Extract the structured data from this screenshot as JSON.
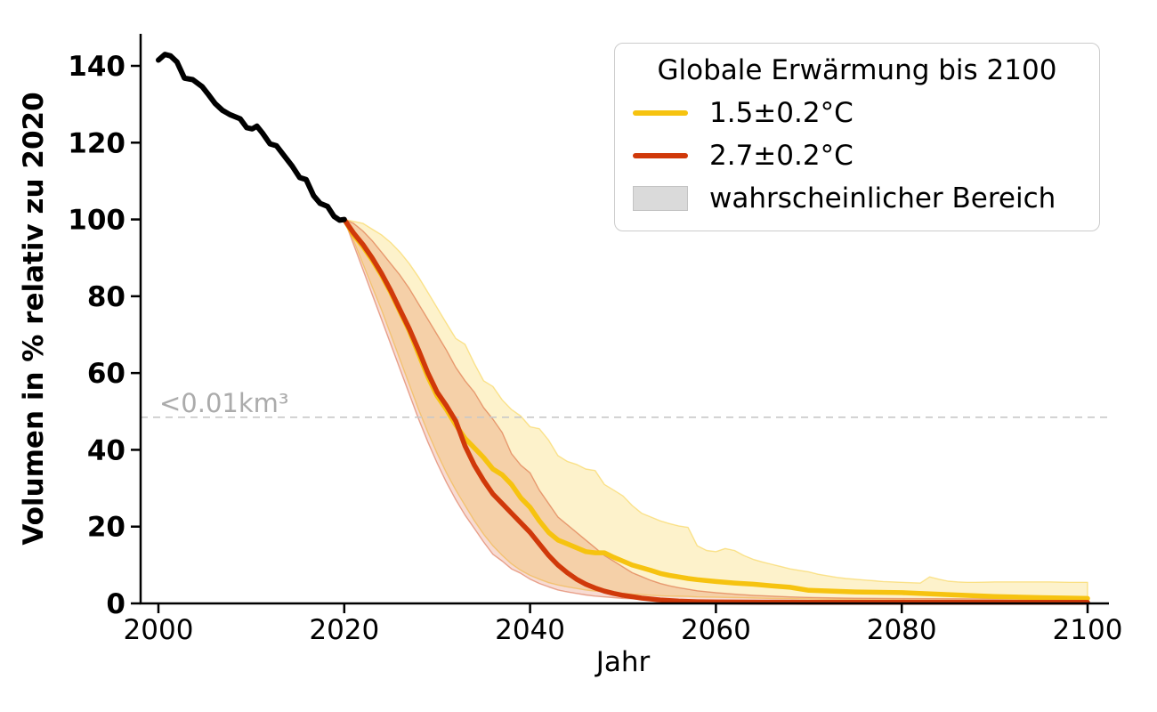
{
  "chart_data": {
    "type": "line",
    "xlabel": "Jahr",
    "ylabel": "Volumen in % relativ zu 2020",
    "xlim": [
      1998.1,
      2102.3
    ],
    "ylim": [
      0,
      148.3
    ],
    "x_ticks": [
      2000,
      2020,
      2040,
      2060,
      2080,
      2100
    ],
    "y_ticks": [
      0,
      20,
      40,
      60,
      80,
      100,
      120,
      140
    ],
    "grid": false,
    "threshold": {
      "label": "<0.01km³",
      "value": 48.5,
      "line_color": "#c8c8c8",
      "text_color": "#ababab"
    },
    "legend": {
      "title": "Globale Erwärmung bis 2100",
      "position": "upper right",
      "items": [
        {
          "label": "1.5±0.2°C",
          "type": "line",
          "color": "#f6c310"
        },
        {
          "label": "2.7±0.2°C",
          "type": "line",
          "color": "#d0390a"
        },
        {
          "label": "wahrscheinlicher Bereich",
          "type": "patch",
          "color": "#dadada"
        }
      ]
    },
    "series": [
      {
        "name": "historical",
        "color": "#000000",
        "width": 6,
        "points": [
          [
            2000,
            141.5
          ],
          [
            2000.7,
            143.0
          ],
          [
            2001.3,
            142.6
          ],
          [
            2002,
            141.0
          ],
          [
            2002.8,
            136.8
          ],
          [
            2003.7,
            136.4
          ],
          [
            2004.7,
            134.6
          ],
          [
            2005.3,
            132.8
          ],
          [
            2006.1,
            130.2
          ],
          [
            2006.9,
            128.4
          ],
          [
            2007.7,
            127.3
          ],
          [
            2008.8,
            126.2
          ],
          [
            2009.5,
            123.9
          ],
          [
            2010.1,
            123.6
          ],
          [
            2010.6,
            124.3
          ],
          [
            2011.2,
            122.5
          ],
          [
            2012,
            119.7
          ],
          [
            2012.7,
            119.2
          ],
          [
            2013.4,
            117.0
          ],
          [
            2014.4,
            113.9
          ],
          [
            2015.2,
            110.9
          ],
          [
            2015.9,
            110.4
          ],
          [
            2016.7,
            106.2
          ],
          [
            2017.4,
            104.2
          ],
          [
            2018.2,
            103.4
          ],
          [
            2018.9,
            100.8
          ],
          [
            2019.5,
            99.8
          ],
          [
            2020,
            100.0
          ]
        ]
      },
      {
        "name": "1.5±0.2°C",
        "color": "#f6c310",
        "width": 5.5,
        "points": [
          [
            2020,
            100
          ],
          [
            2021,
            96
          ],
          [
            2022,
            93
          ],
          [
            2023,
            89.5
          ],
          [
            2024,
            85.5
          ],
          [
            2025,
            81
          ],
          [
            2026,
            76
          ],
          [
            2027,
            71
          ],
          [
            2028,
            65
          ],
          [
            2029,
            59
          ],
          [
            2030,
            54
          ],
          [
            2031,
            50.5
          ],
          [
            2032,
            46.5
          ],
          [
            2033,
            43
          ],
          [
            2034,
            40.5
          ],
          [
            2035,
            38
          ],
          [
            2036,
            35
          ],
          [
            2037,
            33.5
          ],
          [
            2038,
            31
          ],
          [
            2039,
            27.5
          ],
          [
            2040,
            25
          ],
          [
            2041,
            21.5
          ],
          [
            2042,
            18.5
          ],
          [
            2043,
            16.5
          ],
          [
            2044,
            15.5
          ],
          [
            2045,
            14.5
          ],
          [
            2046,
            13.5
          ],
          [
            2047,
            13.2
          ],
          [
            2048,
            13.2
          ],
          [
            2049,
            12
          ],
          [
            2050,
            11
          ],
          [
            2051,
            10
          ],
          [
            2052,
            9.3
          ],
          [
            2053,
            8.6
          ],
          [
            2054,
            7.8
          ],
          [
            2055,
            7.3
          ],
          [
            2056,
            6.9
          ],
          [
            2057,
            6.5
          ],
          [
            2058,
            6.2
          ],
          [
            2060,
            5.7
          ],
          [
            2062,
            5.3
          ],
          [
            2064,
            5.0
          ],
          [
            2066,
            4.6
          ],
          [
            2068,
            4.2
          ],
          [
            2070,
            3.4
          ],
          [
            2075,
            3.0
          ],
          [
            2080,
            2.8
          ],
          [
            2085,
            2.3
          ],
          [
            2090,
            1.8
          ],
          [
            2095,
            1.5
          ],
          [
            2100,
            1.3
          ]
        ]
      },
      {
        "name": "2.7±0.2°C",
        "color": "#d0390a",
        "width": 5.5,
        "points": [
          [
            2020,
            100
          ],
          [
            2021,
            96.5
          ],
          [
            2022,
            93.5
          ],
          [
            2023,
            90
          ],
          [
            2024,
            86
          ],
          [
            2025,
            81.5
          ],
          [
            2026,
            76.5
          ],
          [
            2027,
            71.5
          ],
          [
            2028,
            66
          ],
          [
            2029,
            60
          ],
          [
            2030,
            55
          ],
          [
            2031,
            51.5
          ],
          [
            2032,
            47.5
          ],
          [
            2033,
            41
          ],
          [
            2034,
            36
          ],
          [
            2035,
            32
          ],
          [
            2036,
            28.5
          ],
          [
            2037,
            26
          ],
          [
            2038,
            23.5
          ],
          [
            2039,
            21
          ],
          [
            2040,
            18.5
          ],
          [
            2041,
            15.5
          ],
          [
            2042,
            12.5
          ],
          [
            2043,
            10
          ],
          [
            2044,
            8
          ],
          [
            2045,
            6.3
          ],
          [
            2046,
            5
          ],
          [
            2047,
            4
          ],
          [
            2048,
            3.2
          ],
          [
            2049,
            2.6
          ],
          [
            2050,
            2.1
          ],
          [
            2052,
            1.4
          ],
          [
            2054,
            0.9
          ],
          [
            2056,
            0.6
          ],
          [
            2058,
            0.45
          ],
          [
            2060,
            0.38
          ],
          [
            2065,
            0.32
          ],
          [
            2070,
            0.3
          ],
          [
            2080,
            0.28
          ],
          [
            2090,
            0.28
          ],
          [
            2100,
            0.28
          ]
        ]
      }
    ],
    "bands": [
      {
        "series": "1.5±0.2°C",
        "color": "#f6c310",
        "opacity": 0.22,
        "points": [
          [
            2020,
            100,
            100
          ],
          [
            2021,
            94.5,
            99.5
          ],
          [
            2022,
            88.5,
            99
          ],
          [
            2023,
            82.5,
            97.5
          ],
          [
            2024,
            76.5,
            96
          ],
          [
            2025,
            70,
            94
          ],
          [
            2026,
            63.5,
            91.5
          ],
          [
            2027,
            57,
            88.5
          ],
          [
            2028,
            50.5,
            85
          ],
          [
            2029,
            44.5,
            81
          ],
          [
            2030,
            39,
            77
          ],
          [
            2031,
            34,
            73
          ],
          [
            2032,
            29.5,
            69
          ],
          [
            2033,
            25.5,
            67.5
          ],
          [
            2034,
            21.5,
            62.5
          ],
          [
            2035,
            18,
            58
          ],
          [
            2036,
            15,
            56.5
          ],
          [
            2037,
            12.5,
            53
          ],
          [
            2038,
            10.3,
            50.5
          ],
          [
            2039,
            8.6,
            48.8
          ],
          [
            2040,
            7.3,
            46
          ],
          [
            2041,
            6.3,
            45.5
          ],
          [
            2042,
            5.4,
            42.5
          ],
          [
            2043,
            4.8,
            38.5
          ],
          [
            2044,
            4.3,
            37
          ],
          [
            2045,
            3.9,
            36.2
          ],
          [
            2046,
            3.5,
            35
          ],
          [
            2047,
            3.2,
            34.6
          ],
          [
            2048,
            3.0,
            31
          ],
          [
            2049,
            2.8,
            29.5
          ],
          [
            2050,
            2.6,
            28
          ],
          [
            2051,
            2.4,
            25.5
          ],
          [
            2052,
            2.3,
            23.5
          ],
          [
            2053,
            2.1,
            22.5
          ],
          [
            2054,
            2.0,
            21.5
          ],
          [
            2055,
            1.9,
            20.8
          ],
          [
            2056,
            1.85,
            20.2
          ],
          [
            2057,
            1.8,
            19.8
          ],
          [
            2058,
            1.7,
            15
          ],
          [
            2059,
            1.65,
            13.8
          ],
          [
            2060,
            1.6,
            13.5
          ],
          [
            2061,
            1.55,
            14.3
          ],
          [
            2062,
            1.5,
            13.8
          ],
          [
            2063,
            1.45,
            12.5
          ],
          [
            2064,
            1.4,
            11.5
          ],
          [
            2065,
            1.35,
            10.8
          ],
          [
            2066,
            1.3,
            10.2
          ],
          [
            2067,
            1.28,
            9.6
          ],
          [
            2068,
            1.25,
            9.0
          ],
          [
            2069,
            1.2,
            8.6
          ],
          [
            2070,
            1.15,
            8.2
          ],
          [
            2071,
            1.12,
            7.6
          ],
          [
            2072,
            1.1,
            7.2
          ],
          [
            2073,
            1.08,
            6.8
          ],
          [
            2074,
            1.05,
            6.5
          ],
          [
            2075,
            1.02,
            6.3
          ],
          [
            2076,
            1.0,
            6.1
          ],
          [
            2077,
            0.98,
            5.9
          ],
          [
            2078,
            0.95,
            5.7
          ],
          [
            2079,
            0.93,
            5.6
          ],
          [
            2080,
            0.9,
            5.5
          ],
          [
            2081,
            0.88,
            5.4
          ],
          [
            2082,
            0.86,
            5.3
          ],
          [
            2083,
            0.85,
            6.9
          ],
          [
            2084,
            0.83,
            6.3
          ],
          [
            2085,
            0.8,
            5.8
          ],
          [
            2086,
            0.78,
            5.6
          ],
          [
            2087,
            0.77,
            5.5
          ],
          [
            2088,
            0.76,
            5.5
          ],
          [
            2090,
            0.74,
            5.6
          ],
          [
            2092,
            0.72,
            5.6
          ],
          [
            2094,
            0.71,
            5.6
          ],
          [
            2096,
            0.7,
            5.6
          ],
          [
            2098,
            0.68,
            5.5
          ],
          [
            2100,
            0.67,
            5.5
          ]
        ]
      },
      {
        "series": "2.7±0.2°C",
        "color": "#d0390a",
        "opacity": 0.18,
        "points": [
          [
            2020,
            100,
            100
          ],
          [
            2021,
            93.5,
            99
          ],
          [
            2022,
            87,
            97
          ],
          [
            2023,
            80.5,
            94.5
          ],
          [
            2024,
            74,
            91.5
          ],
          [
            2025,
            67.5,
            88.5
          ],
          [
            2026,
            61,
            85.5
          ],
          [
            2027,
            54.5,
            82
          ],
          [
            2028,
            48,
            78
          ],
          [
            2029,
            42,
            74
          ],
          [
            2030,
            36.5,
            70
          ],
          [
            2031,
            31.5,
            66
          ],
          [
            2032,
            27,
            61.5
          ],
          [
            2033,
            23,
            58
          ],
          [
            2034,
            19.5,
            55
          ],
          [
            2035,
            16,
            51
          ],
          [
            2036,
            12.8,
            48
          ],
          [
            2037,
            11,
            44.5
          ],
          [
            2038,
            9,
            39
          ],
          [
            2039,
            7.8,
            36
          ],
          [
            2040,
            6.3,
            34
          ],
          [
            2041,
            5.2,
            29.5
          ],
          [
            2042,
            4.3,
            26
          ],
          [
            2043,
            3.5,
            22.5
          ],
          [
            2044,
            3.0,
            20.5
          ],
          [
            2045,
            2.6,
            18.5
          ],
          [
            2046,
            2.2,
            16.5
          ],
          [
            2047,
            1.9,
            14.5
          ],
          [
            2048,
            1.7,
            12.5
          ],
          [
            2049,
            1.5,
            11
          ],
          [
            2050,
            1.3,
            9.5
          ],
          [
            2051,
            1.2,
            8
          ],
          [
            2052,
            1.1,
            7
          ],
          [
            2053,
            0.95,
            6
          ],
          [
            2054,
            0.85,
            5.2
          ],
          [
            2055,
            0.78,
            4.6
          ],
          [
            2056,
            0.7,
            4.1
          ],
          [
            2058,
            0.6,
            3.3
          ],
          [
            2060,
            0.55,
            2.8
          ],
          [
            2062,
            0.5,
            2.4
          ],
          [
            2064,
            0.47,
            2.1
          ],
          [
            2066,
            0.44,
            1.9
          ],
          [
            2068,
            0.42,
            1.7
          ],
          [
            2070,
            0.4,
            1.55
          ],
          [
            2075,
            0.37,
            1.35
          ],
          [
            2080,
            0.35,
            1.25
          ],
          [
            2090,
            0.32,
            1.15
          ],
          [
            2100,
            0.3,
            1.1
          ]
        ]
      }
    ],
    "axis_color": "#000000"
  }
}
